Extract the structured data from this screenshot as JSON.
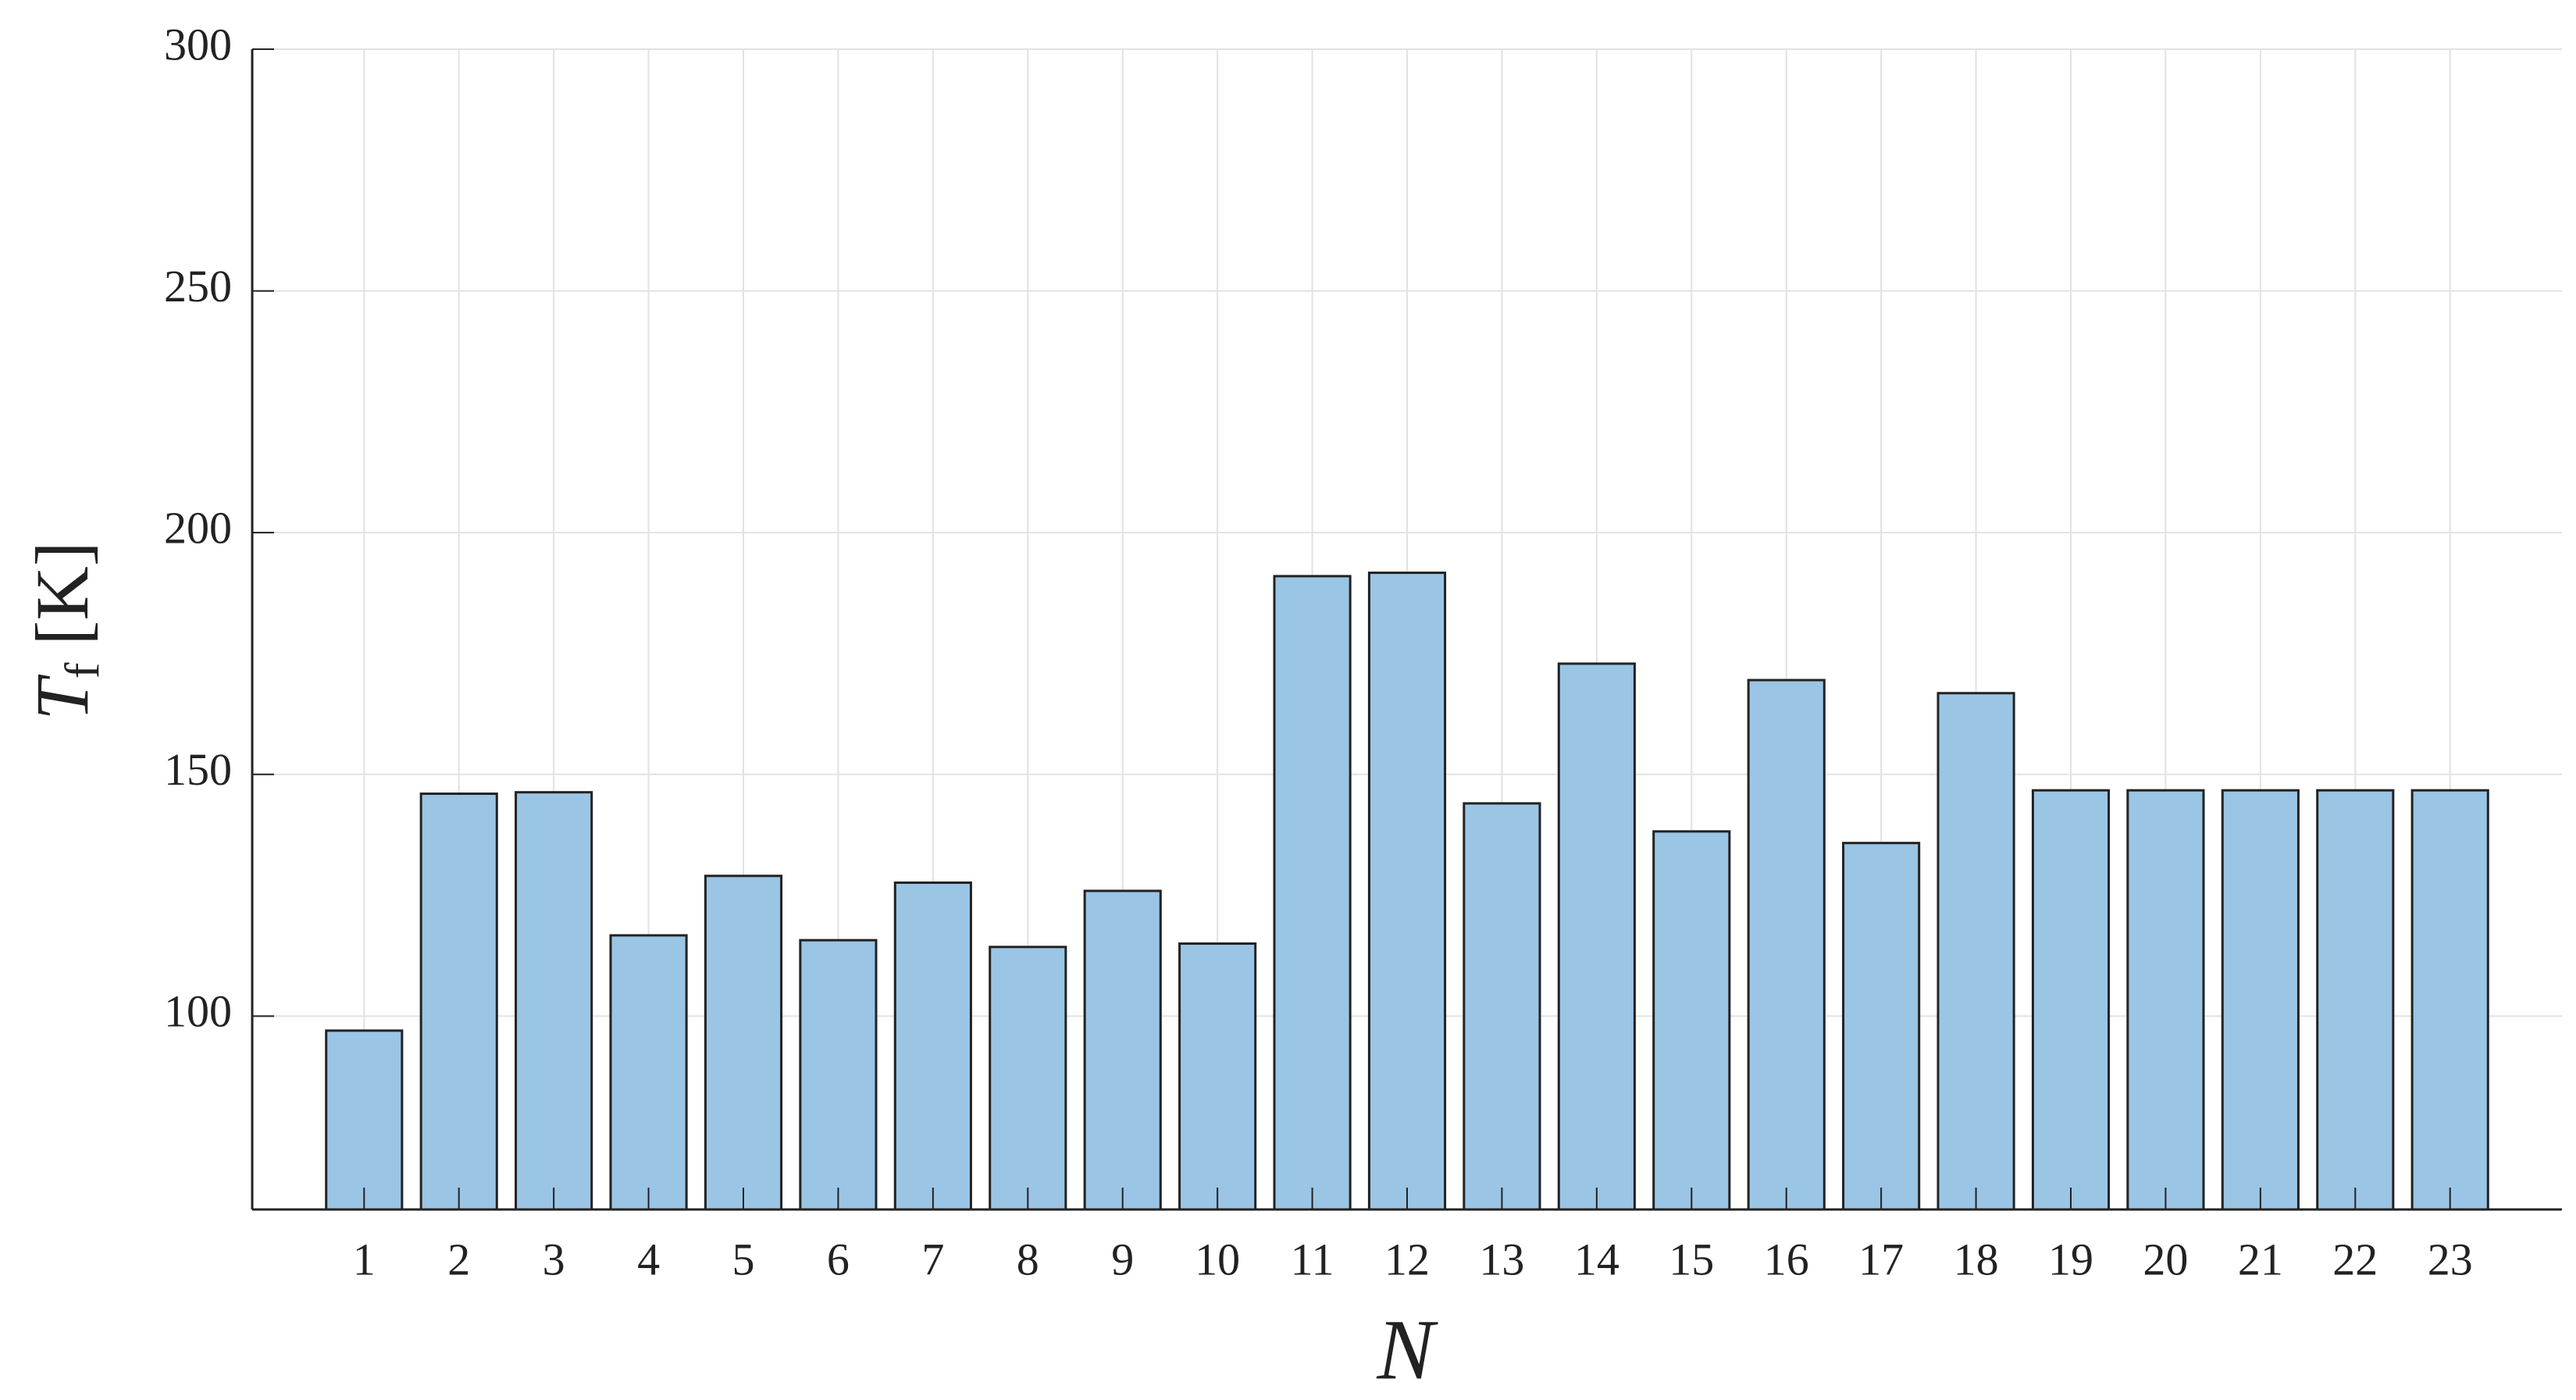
{
  "chart_data": {
    "type": "bar",
    "x_label": "N",
    "y_label": {
      "symbol": "T",
      "subscript": "f",
      "unit": "[K]"
    },
    "categories": [
      "1",
      "2",
      "3",
      "4",
      "5",
      "6",
      "7",
      "8",
      "9",
      "10",
      "11",
      "12",
      "13",
      "14",
      "15",
      "16",
      "17",
      "18",
      "19",
      "20",
      "21",
      "22",
      "23"
    ],
    "values": [
      97,
      146,
      146.3,
      116.7,
      129,
      115.7,
      127.6,
      114.3,
      125.9,
      115,
      191,
      191.7,
      144,
      172.9,
      138.2,
      169.5,
      135.8,
      166.8,
      146.7,
      146.7,
      146.7,
      146.7,
      146.7
    ],
    "color": "#9bc5e5",
    "ylim": [
      60,
      300
    ],
    "yticks": [
      100,
      150,
      200,
      250,
      300
    ],
    "grid": true
  }
}
